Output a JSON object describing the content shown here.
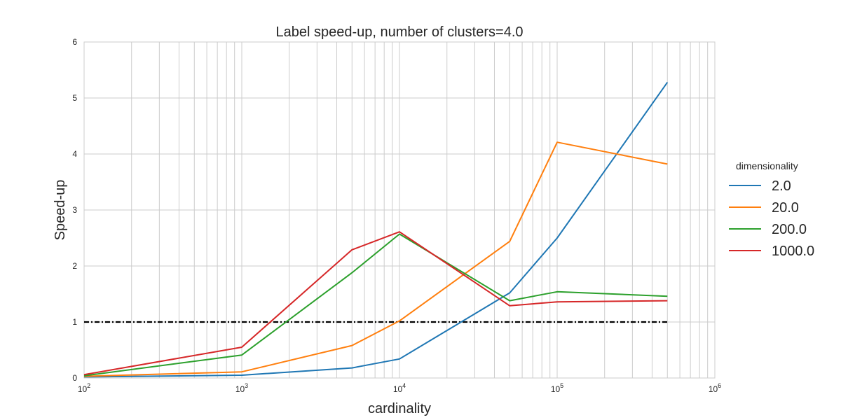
{
  "chart_data": {
    "type": "line",
    "title": "Label speed-up, number of clusters=4.0",
    "xlabel": "cardinality",
    "ylabel": "Speed-up",
    "x_scale": "log",
    "xlim": [
      100,
      1000000
    ],
    "ylim": [
      0,
      6
    ],
    "x_ticks": [
      {
        "base": "10",
        "exp": "2",
        "value": 100
      },
      {
        "base": "10",
        "exp": "3",
        "value": 1000
      },
      {
        "base": "10",
        "exp": "4",
        "value": 10000
      },
      {
        "base": "10",
        "exp": "5",
        "value": 100000
      },
      {
        "base": "10",
        "exp": "6",
        "value": 1000000
      }
    ],
    "y_ticks": [
      "0",
      "1",
      "2",
      "3",
      "4",
      "5",
      "6"
    ],
    "grid": true,
    "legend": {
      "title": "dimensionality",
      "placement": "right"
    },
    "x": [
      100,
      1000,
      5000,
      10000,
      50000,
      100000,
      500000
    ],
    "series": [
      {
        "name": "2.0",
        "color": "#1f77b4",
        "values": [
          0.02,
          0.05,
          0.18,
          0.34,
          1.52,
          2.5,
          5.28
        ]
      },
      {
        "name": "20.0",
        "color": "#ff7f0e",
        "values": [
          0.03,
          0.11,
          0.58,
          1.02,
          2.44,
          4.21,
          3.82
        ]
      },
      {
        "name": "200.0",
        "color": "#2ca02c",
        "values": [
          0.04,
          0.41,
          1.88,
          2.57,
          1.38,
          1.54,
          1.46
        ]
      },
      {
        "name": "1000.0",
        "color": "#d62728",
        "values": [
          0.06,
          0.55,
          2.29,
          2.61,
          1.29,
          1.36,
          1.38
        ]
      }
    ],
    "reference_line": {
      "y": 1,
      "x_range": [
        100,
        500000
      ],
      "color": "#000000",
      "style": "dash-dot"
    }
  }
}
